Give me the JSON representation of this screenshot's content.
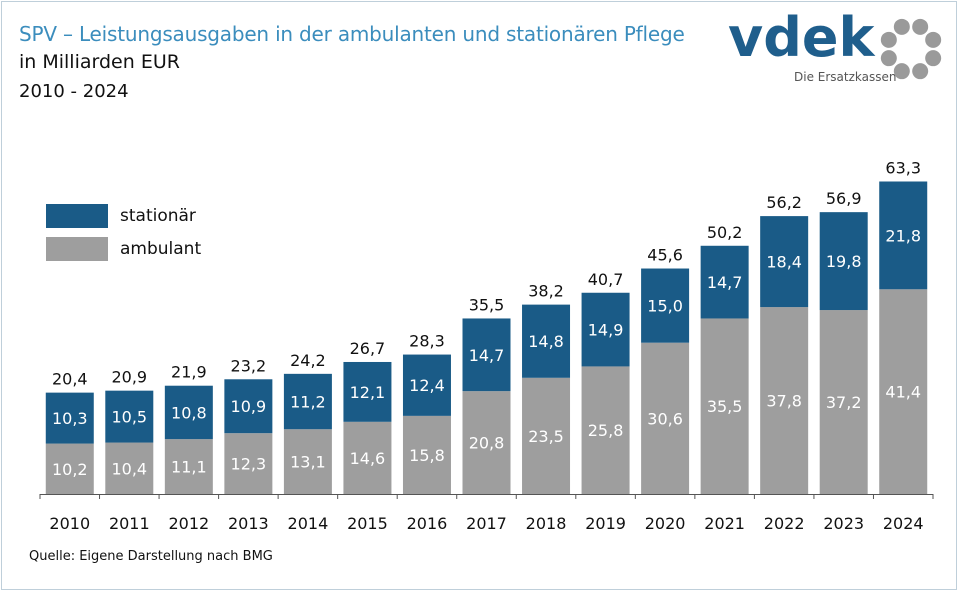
{
  "header": {
    "title": "SPV – Leistungsausgaben in der ambulanten und stationären Pflege",
    "unit": "in Milliarden EUR",
    "period": "2010 - 2024"
  },
  "logo": {
    "wordmark": "vdek",
    "tagline": "Die Ersatzkassen",
    "brand_color": "#1f5e8c"
  },
  "source": "Quelle: Eigene Darstellung nach BMG",
  "colors": {
    "stationaer": "#1a5b87",
    "ambulant": "#9e9e9e",
    "logo_ring": "#9a9a9a"
  },
  "chart_data": {
    "type": "bar",
    "stacked": true,
    "categories": [
      "2010",
      "2011",
      "2012",
      "2013",
      "2014",
      "2015",
      "2016",
      "2017",
      "2018",
      "2019",
      "2020",
      "2021",
      "2022",
      "2023",
      "2024"
    ],
    "series": [
      {
        "name": "ambulant",
        "values": [
          "10,2",
          "10,4",
          "11,1",
          "12,3",
          "13,1",
          "14,6",
          "15,8",
          "20,8",
          "23,5",
          "25,8",
          "30,6",
          "35,5",
          "37,8",
          "37,2",
          "41,4"
        ]
      },
      {
        "name": "stationär",
        "values": [
          "10,3",
          "10,5",
          "10,8",
          "10,9",
          "11,2",
          "12,1",
          "12,4",
          "14,7",
          "14,8",
          "14,9",
          "15,0",
          "14,7",
          "18,4",
          "19,8",
          "21,8"
        ]
      }
    ],
    "totals": [
      "20,4",
      "20,9",
      "21,9",
      "23,2",
      "24,2",
      "26,7",
      "28,3",
      "35,5",
      "38,2",
      "40,7",
      "45,6",
      "50,2",
      "56,2",
      "56,9",
      "63,3"
    ],
    "legend": [
      "stationär",
      "ambulant"
    ],
    "legend_position": "top-left",
    "ylim": [
      0,
      65
    ],
    "grid": false
  }
}
